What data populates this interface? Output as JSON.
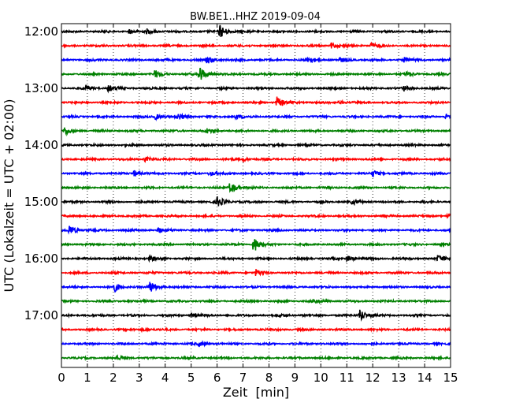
{
  "chart_data": {
    "type": "line",
    "title": "BW.BE1..HHZ 2019-09-04",
    "xlabel": "Zeit  [min]",
    "ylabel": "UTC (Lokalzeit = UTC + 02:00)",
    "xlim": [
      0,
      15
    ],
    "x_ticks": [
      0,
      1,
      2,
      3,
      4,
      5,
      6,
      7,
      8,
      9,
      10,
      11,
      12,
      13,
      14,
      15
    ],
    "x_tick_labels": [
      "0",
      "1",
      "2",
      "3",
      "4",
      "5",
      "6",
      "7",
      "8",
      "9",
      "10",
      "11",
      "12",
      "13",
      "14",
      "15"
    ],
    "grid": "x-dotted",
    "trace_interval_min": 15,
    "y_tick_labels": [
      "12:00",
      "13:00",
      "14:00",
      "15:00",
      "16:00",
      "17:00"
    ],
    "colors": [
      "#000000",
      "#ff0000",
      "#0000ff",
      "#008000"
    ],
    "traces": [
      {
        "start": "12:00",
        "color": "#000000",
        "events": [
          [
            6.1,
            9
          ],
          [
            2.6,
            3
          ],
          [
            3.3,
            3
          ]
        ]
      },
      {
        "start": "12:15",
        "color": "#ff0000",
        "events": [
          [
            10.4,
            4
          ],
          [
            11.9,
            4
          ]
        ]
      },
      {
        "start": "12:30",
        "color": "#0000ff",
        "events": [
          [
            5.6,
            5
          ],
          [
            9.5,
            4
          ],
          [
            10.7,
            3
          ],
          [
            13.2,
            3
          ]
        ]
      },
      {
        "start": "12:45",
        "color": "#008000",
        "events": [
          [
            3.6,
            5
          ],
          [
            5.3,
            11
          ],
          [
            13.3,
            3
          ]
        ]
      },
      {
        "start": "13:00",
        "color": "#000000",
        "events": [
          [
            0.9,
            4
          ],
          [
            1.8,
            4
          ],
          [
            13.2,
            3
          ]
        ]
      },
      {
        "start": "13:15",
        "color": "#ff0000",
        "events": [
          [
            8.3,
            7
          ],
          [
            10.7,
            2
          ]
        ]
      },
      {
        "start": "13:30",
        "color": "#0000ff",
        "events": [
          [
            3.6,
            4
          ],
          [
            4.5,
            4
          ],
          [
            6.7,
            3
          ],
          [
            14.8,
            3
          ]
        ]
      },
      {
        "start": "13:45",
        "color": "#008000",
        "events": [
          [
            0.1,
            5
          ],
          [
            5.6,
            3
          ]
        ]
      },
      {
        "start": "14:00",
        "color": "#000000",
        "events": []
      },
      {
        "start": "14:15",
        "color": "#ff0000",
        "events": [
          [
            3.2,
            3
          ],
          [
            7.0,
            2
          ]
        ]
      },
      {
        "start": "14:30",
        "color": "#0000ff",
        "events": [
          [
            2.8,
            4
          ],
          [
            5.7,
            3
          ],
          [
            12.0,
            4
          ]
        ]
      },
      {
        "start": "14:45",
        "color": "#008000",
        "events": [
          [
            6.5,
            8
          ]
        ]
      },
      {
        "start": "15:00",
        "color": "#000000",
        "events": [
          [
            6.0,
            7
          ],
          [
            11.2,
            3
          ]
        ]
      },
      {
        "start": "15:15",
        "color": "#ff0000",
        "events": [
          [
            14.9,
            6
          ]
        ]
      },
      {
        "start": "15:30",
        "color": "#0000ff",
        "events": [
          [
            0.3,
            7
          ],
          [
            3.7,
            4
          ]
        ]
      },
      {
        "start": "15:45",
        "color": "#008000",
        "events": [
          [
            7.4,
            11
          ]
        ]
      },
      {
        "start": "16:00",
        "color": "#000000",
        "events": [
          [
            3.4,
            3
          ],
          [
            11.0,
            4
          ],
          [
            14.5,
            4
          ]
        ]
      },
      {
        "start": "16:15",
        "color": "#ff0000",
        "events": [
          [
            7.5,
            4
          ]
        ]
      },
      {
        "start": "16:30",
        "color": "#0000ff",
        "events": [
          [
            2.0,
            7
          ],
          [
            3.4,
            8
          ]
        ]
      },
      {
        "start": "16:45",
        "color": "#008000",
        "events": [
          [
            9.7,
            3
          ]
        ]
      },
      {
        "start": "17:00",
        "color": "#000000",
        "events": [
          [
            5.0,
            3
          ],
          [
            8.4,
            2
          ],
          [
            11.5,
            8
          ]
        ]
      },
      {
        "start": "17:15",
        "color": "#ff0000",
        "events": [
          [
            3.1,
            2
          ]
        ]
      },
      {
        "start": "17:30",
        "color": "#0000ff",
        "events": [
          [
            5.3,
            3
          ]
        ]
      },
      {
        "start": "17:45",
        "color": "#008000",
        "events": [
          [
            2.1,
            3
          ]
        ]
      }
    ]
  }
}
